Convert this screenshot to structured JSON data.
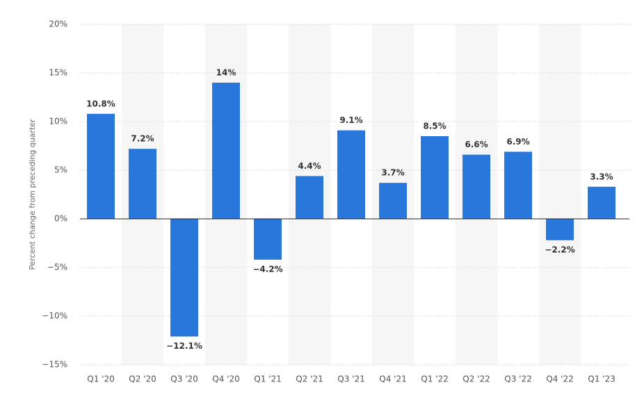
{
  "chart_data": {
    "type": "bar",
    "y_axis_label": "Percent change from preceding quarter",
    "categories": [
      "Q1 '20",
      "Q2 '20",
      "Q3 '20",
      "Q4 '20",
      "Q1 '21",
      "Q2 '21",
      "Q3 '21",
      "Q4 '21",
      "Q1 '22",
      "Q2 '22",
      "Q3 '22",
      "Q4 '22",
      "Q1 '23"
    ],
    "values": [
      10.8,
      7.2,
      -12.1,
      14,
      -4.2,
      4.4,
      9.1,
      3.7,
      8.5,
      6.6,
      6.9,
      -2.2,
      3.3
    ],
    "value_labels": [
      "10.8%",
      "7.2%",
      "−12.1%",
      "14%",
      "−4.2%",
      "4.4%",
      "9.1%",
      "3.7%",
      "8.5%",
      "6.6%",
      "6.9%",
      "−2.2%",
      "3.3%"
    ],
    "color": "#2a77dc",
    "ylim": [
      -15,
      20
    ],
    "yticks": [
      {
        "value": -15,
        "label": "−15%"
      },
      {
        "value": -10,
        "label": "−10%"
      },
      {
        "value": -5,
        "label": "−5%"
      },
      {
        "value": 0,
        "label": "0%"
      },
      {
        "value": 5,
        "label": "5%"
      },
      {
        "value": 10,
        "label": "10%"
      },
      {
        "value": 15,
        "label": "15%"
      },
      {
        "value": 20,
        "label": "20%"
      }
    ],
    "grid": true
  }
}
